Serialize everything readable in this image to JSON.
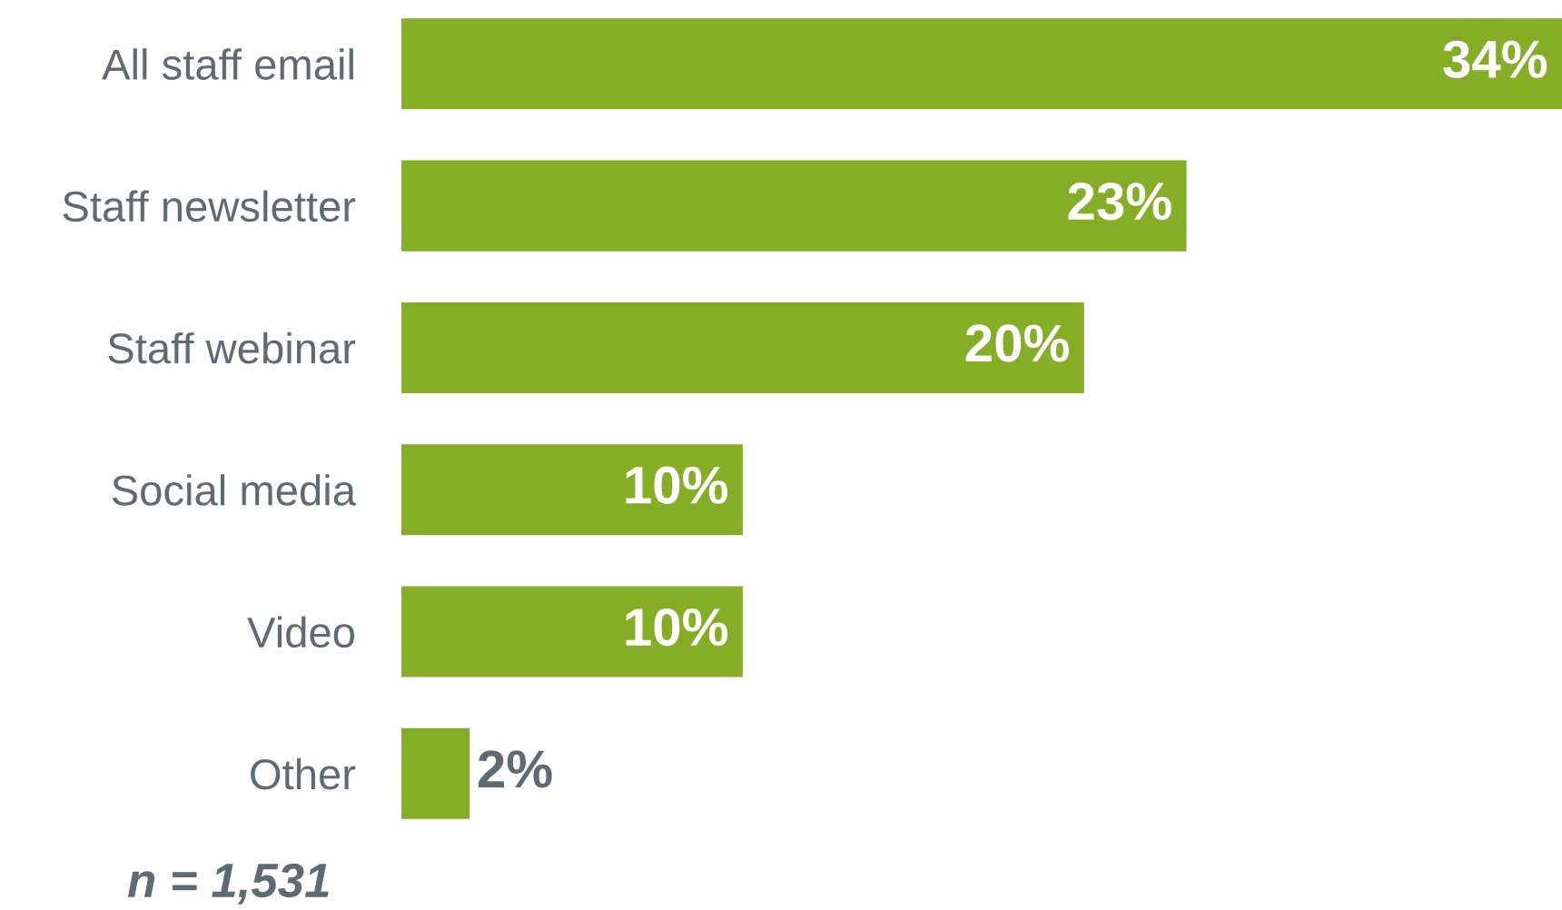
{
  "chart_data": {
    "type": "bar",
    "orientation": "horizontal",
    "categories": [
      "All staff email",
      "Staff newsletter",
      "Staff webinar",
      "Social media",
      "Video",
      "Other"
    ],
    "values": [
      34,
      23,
      20,
      10,
      10,
      2
    ],
    "value_labels": [
      "34%",
      "23%",
      "20%",
      "10%",
      "10%",
      "2%"
    ],
    "color": "#86ad26",
    "annotations": [
      "n = 1,531"
    ]
  }
}
